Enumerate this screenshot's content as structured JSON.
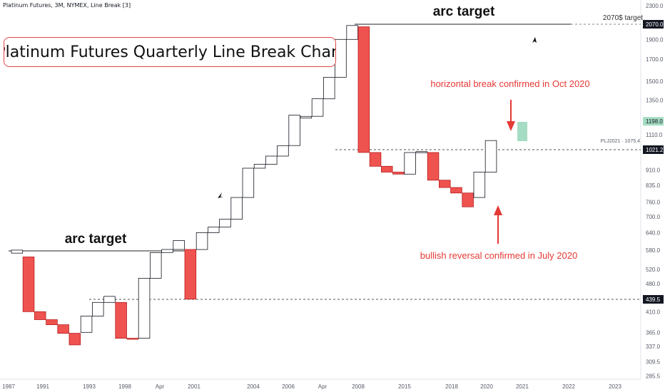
{
  "header": {
    "symbol_line": "Platinum Futures, 3M, NYMEX, Line Break [3]"
  },
  "title_box": "Platinum Futures Quarterly Line Break Chart",
  "colors": {
    "up_border": "#131722",
    "up_fill": "#ffffff",
    "down_fill": "#ef5350",
    "down_border": "#b71c1c",
    "annotation_red": "#e53935",
    "green_box": "#a5dcc3",
    "axis_text": "#555a66"
  },
  "chart_data": {
    "type": "line-break",
    "y_scale": "log",
    "ylim": [
      283,
      2430
    ],
    "x_ticks": [
      "1987",
      "1991",
      "1993",
      "1998",
      "Apr",
      "2001",
      "2004",
      "2006",
      "Apr",
      "2008",
      "2015",
      "2018",
      "2020",
      "2021",
      "2022",
      "2023"
    ],
    "y_ticks": [
      "2300.0",
      "2070.0",
      "1900.0",
      "1700.0",
      "1500.0",
      "1350.0",
      "1198.0",
      "1110.0",
      "1021.2",
      "910.0",
      "835.0",
      "760.0",
      "700.0",
      "640.0",
      "580.0",
      "520.0",
      "480.0",
      "439.5",
      "410.0",
      "365.0",
      "337.0",
      "309.5",
      "285.5"
    ],
    "highlighted_prices": [
      {
        "label": "2070.0",
        "style": "dark"
      },
      {
        "label": "1198.0",
        "style": "green"
      },
      {
        "label": "1021.2",
        "style": "dark"
      },
      {
        "label": "439.5",
        "style": "dark"
      }
    ],
    "last_price_label": "PLJ2021 · 1075.4",
    "bricks": [
      {
        "dir": "up",
        "open": 570,
        "close": 580
      },
      {
        "dir": "down",
        "open": 558,
        "close": 410
      },
      {
        "dir": "down",
        "open": 410,
        "close": 392
      },
      {
        "dir": "down",
        "open": 392,
        "close": 381
      },
      {
        "dir": "down",
        "open": 381,
        "close": 363
      },
      {
        "dir": "down",
        "open": 363,
        "close": 340
      },
      {
        "dir": "up",
        "open": 365,
        "close": 400
      },
      {
        "dir": "up",
        "open": 400,
        "close": 432
      },
      {
        "dir": "up",
        "open": 432,
        "close": 447
      },
      {
        "dir": "down",
        "open": 432,
        "close": 353
      },
      {
        "dir": "down",
        "open": 353,
        "close": 351
      },
      {
        "dir": "up",
        "open": 353,
        "close": 495
      },
      {
        "dir": "up",
        "open": 495,
        "close": 572
      },
      {
        "dir": "up",
        "open": 572,
        "close": 582
      },
      {
        "dir": "up",
        "open": 582,
        "close": 612
      },
      {
        "dir": "down",
        "open": 582,
        "close": 440
      },
      {
        "dir": "up",
        "open": 582,
        "close": 640
      },
      {
        "dir": "up",
        "open": 640,
        "close": 660
      },
      {
        "dir": "up",
        "open": 660,
        "close": 690
      },
      {
        "dir": "up",
        "open": 690,
        "close": 780
      },
      {
        "dir": "up",
        "open": 780,
        "close": 920
      },
      {
        "dir": "up",
        "open": 920,
        "close": 940
      },
      {
        "dir": "up",
        "open": 940,
        "close": 985
      },
      {
        "dir": "up",
        "open": 985,
        "close": 1045
      },
      {
        "dir": "up",
        "open": 1045,
        "close": 1240
      },
      {
        "dir": "up",
        "open": 1220,
        "close": 1232
      },
      {
        "dir": "up",
        "open": 1232,
        "close": 1360
      },
      {
        "dir": "up",
        "open": 1360,
        "close": 1535
      },
      {
        "dir": "up",
        "open": 1535,
        "close": 1900
      },
      {
        "dir": "up",
        "open": 1900,
        "close": 2055
      },
      {
        "dir": "down",
        "open": 2040,
        "close": 1005
      },
      {
        "dir": "down",
        "open": 1005,
        "close": 930
      },
      {
        "dir": "down",
        "open": 930,
        "close": 900
      },
      {
        "dir": "down",
        "open": 900,
        "close": 890
      },
      {
        "dir": "up",
        "open": 890,
        "close": 1005
      },
      {
        "dir": "up",
        "open": 1005,
        "close": 1010
      },
      {
        "dir": "down",
        "open": 1005,
        "close": 860
      },
      {
        "dir": "down",
        "open": 860,
        "close": 825
      },
      {
        "dir": "down",
        "open": 825,
        "close": 800
      },
      {
        "dir": "down",
        "open": 800,
        "close": 740
      },
      {
        "dir": "up",
        "open": 780,
        "close": 900
      },
      {
        "dir": "up",
        "open": 900,
        "close": 1075
      }
    ]
  },
  "annotations": {
    "arc_target_left": "arc target",
    "arc_target_right": "arc target",
    "target_2070": "2070$ target",
    "break_note": "horizontal break confirmed in Oct 2020",
    "reversal_note": "bullish reversal confirmed in July 2020"
  }
}
